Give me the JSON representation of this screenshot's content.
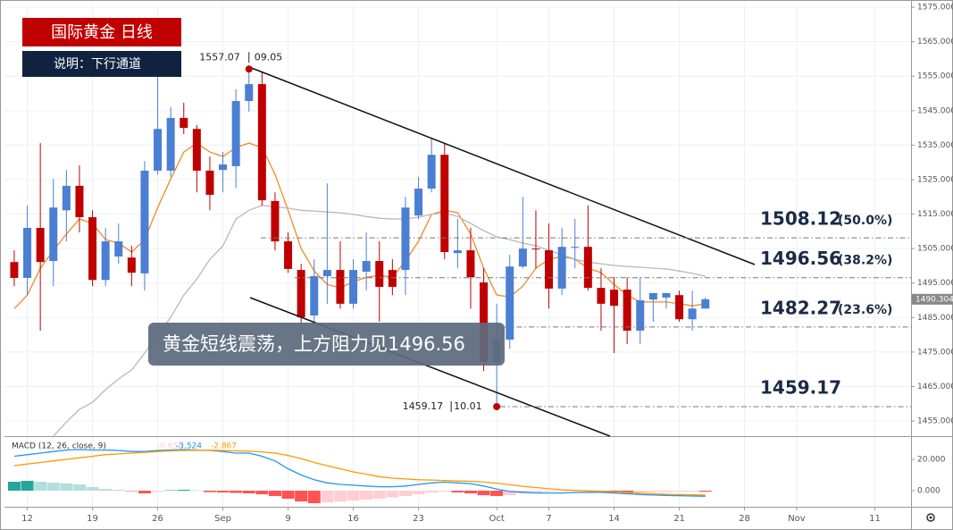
{
  "chart_data": [
    {
      "type": "candlestick",
      "title": "国际黄金 日线",
      "subtitle": "说明：下行通道",
      "annotation": "黄金短线震荡，上方阻力见1496.56",
      "high_point": {
        "value": 1557.07,
        "date": "09.05"
      },
      "low_point": {
        "value": 1459.17,
        "date": "10.01"
      },
      "levels": [
        {
          "value": 1508.12,
          "pct": "(50.0%)"
        },
        {
          "value": 1496.56,
          "pct": "(38.2%)"
        },
        {
          "value": 1482.27,
          "pct": "(23.6%)"
        },
        {
          "value": 1459.17
        }
      ],
      "up_color": "#4a7fd4",
      "down_color": "#c00000",
      "xlim": [
        -0.75,
        68.77
      ],
      "xticks": [
        {
          "value": 1,
          "label": "12"
        },
        {
          "value": 6,
          "label": "19"
        },
        {
          "value": 11,
          "label": "26"
        },
        {
          "value": 16,
          "label": "Sep"
        },
        {
          "value": 21,
          "label": "9"
        },
        {
          "value": 26,
          "label": "16"
        },
        {
          "value": 31,
          "label": "23"
        },
        {
          "value": 37,
          "label": "Oct"
        },
        {
          "value": 41,
          "label": "7"
        },
        {
          "value": 46,
          "label": "14"
        },
        {
          "value": 51,
          "label": "21"
        },
        {
          "value": 56,
          "label": "28"
        },
        {
          "value": 60,
          "label": "Nov"
        },
        {
          "value": 66,
          "label": "11"
        }
      ],
      "ylim": [
        1450.6,
        1575.8
      ],
      "yticks": [
        {
          "value": 1455,
          "label": "1455.000"
        },
        {
          "value": 1465,
          "label": "1465.000"
        },
        {
          "value": 1475,
          "label": "1475.000"
        },
        {
          "value": 1485,
          "label": "1485.000"
        },
        {
          "value": 1495,
          "label": "1495.000"
        },
        {
          "value": 1505,
          "label": "1505.000"
        },
        {
          "value": 1515,
          "label": "1515.000"
        },
        {
          "value": 1525,
          "label": "1525.000"
        },
        {
          "value": 1535,
          "label": "1535.000"
        },
        {
          "value": 1545,
          "label": "1545.000"
        },
        {
          "value": 1555,
          "label": "1555.000"
        },
        {
          "value": 1565,
          "label": "1565.000"
        },
        {
          "value": 1575,
          "label": "1575.000"
        }
      ],
      "grid": true,
      "open": [
        1501.1,
        1496.5,
        1511.0,
        1501.4,
        1516.1,
        1523.2,
        1514.1,
        1495.9,
        1502.7,
        1502.4,
        1497.8,
        1527.6,
        1527.6,
        1542.9,
        1539.7,
        1527.6,
        1527.8,
        1528.9,
        1547.8,
        1552.7,
        1518.8,
        1507.1,
        1498.8,
        1485.6,
        1497.0,
        1498.8,
        1489.0,
        1498.3,
        1501.4,
        1498.8,
        1498.8,
        1514.6,
        1522.4,
        1532.2,
        1503.7,
        1504.5,
        1495.2,
        1472.1,
        1478.6,
        1499.8,
        1505.0,
        1504.5,
        1493.4,
        1505.3,
        1505.5,
        1493.6,
        1493.1,
        1493.1,
        1481.2,
        1490.2,
        1490.8,
        1491.5,
        1484.5,
        1487.6
      ],
      "high": [
        1504.5,
        1517.5,
        1535.6,
        1525.2,
        1527.8,
        1529.1,
        1516.1,
        1511.0,
        1512.3,
        1505.8,
        1530.4,
        1555.5,
        1546.0,
        1547.3,
        1540.8,
        1531.7,
        1533.0,
        1551.2,
        1557.07,
        1556.3,
        1521.3,
        1509.7,
        1500.6,
        1501.9,
        1523.9,
        1507.1,
        1501.9,
        1509.7,
        1507.1,
        1501.9,
        1520.0,
        1525.8,
        1536.9,
        1535.6,
        1513.6,
        1511.0,
        1499.3,
        1489.0,
        1503.2,
        1520.0,
        1516.1,
        1512.3,
        1511.0,
        1513.6,
        1517.5,
        1499.3,
        1496.7,
        1496.7,
        1496.7,
        1492.1,
        1492.1,
        1492.8,
        1492.8,
        1490.8
      ],
      "low": [
        1494.1,
        1491.5,
        1481.2,
        1494.1,
        1507.1,
        1509.7,
        1494.1,
        1494.1,
        1500.6,
        1494.1,
        1492.8,
        1526.5,
        1525.8,
        1538.2,
        1521.3,
        1516.1,
        1521.3,
        1522.6,
        1544.7,
        1517.5,
        1504.5,
        1498.0,
        1482.5,
        1483.8,
        1489.0,
        1487.6,
        1487.6,
        1492.8,
        1483.8,
        1491.5,
        1491.5,
        1513.6,
        1521.3,
        1501.9,
        1499.3,
        1487.6,
        1469.5,
        1459.17,
        1476.0,
        1499.3,
        1499.3,
        1487.6,
        1491.5,
        1499.3,
        1492.8,
        1481.2,
        1474.7,
        1477.3,
        1477.3,
        1483.8,
        1487.6,
        1483.8,
        1481.2,
        1487.6
      ],
      "close": [
        1496.5,
        1511.0,
        1501.1,
        1516.9,
        1523.2,
        1514.1,
        1495.9,
        1507.1,
        1507.1,
        1498.0,
        1527.6,
        1539.7,
        1542.9,
        1540.0,
        1527.6,
        1520.6,
        1529.4,
        1547.8,
        1552.7,
        1519.0,
        1507.1,
        1499.1,
        1485.1,
        1497.0,
        1498.8,
        1489.0,
        1498.8,
        1501.4,
        1493.9,
        1493.9,
        1516.9,
        1522.4,
        1532.2,
        1504.0,
        1504.5,
        1496.7,
        1472.1,
        1478.6,
        1499.8,
        1505.0,
        1504.8,
        1493.4,
        1505.5,
        1505.5,
        1493.6,
        1489.0,
        1488.4,
        1481.2,
        1490.0,
        1492.1,
        1492.1,
        1484.5,
        1487.6,
        1490.304
      ],
      "lines": [
        {
          "color": "#f08a24",
          "values": [
            1487.6,
            1491.5,
            1499.3,
            1504.5,
            1509.2,
            1513.6,
            1512.3,
            1507.6,
            1506.6,
            1504.0,
            1507.6,
            1516.9,
            1525.2,
            1533.0,
            1535.6,
            1533.0,
            1531.7,
            1534.3,
            1535.6,
            1534.3,
            1526.5,
            1516.1,
            1505.0,
            1498.5,
            1494.6,
            1493.6,
            1495.4,
            1496.7,
            1497.2,
            1496.7,
            1501.4,
            1507.1,
            1514.9,
            1516.1,
            1515.4,
            1509.2,
            1499.3,
            1491.5,
            1491.0,
            1494.1,
            1499.3,
            1501.9,
            1502.7,
            1501.9,
            1499.3,
            1498.0,
            1494.6,
            1491.5,
            1489.5,
            1489.5,
            1489.5,
            1489.0,
            1488.4,
            1489.0
          ]
        },
        {
          "color": "#b8b8b8",
          "values": [
            null,
            null,
            null,
            1450.6,
            1454.7,
            1458.4,
            1460.4,
            1464.1,
            1467.2,
            1469.8,
            1474.7,
            1479.9,
            1485.1,
            1491.5,
            1496.2,
            1501.9,
            1505.8,
            1513.6,
            1516.1,
            1517.5,
            1517.2,
            1516.7,
            1516.1,
            1515.9,
            1515.6,
            1515.4,
            1514.9,
            1514.3,
            1513.8,
            1513.6,
            1513.6,
            1514.1,
            1514.9,
            1515.4,
            1514.3,
            1512.3,
            1510.2,
            1508.4,
            1507.6,
            1506.6,
            1505.8,
            1504.5,
            1503.2,
            1501.9,
            1501.1,
            1500.6,
            1500.1,
            1499.8,
            1499.6,
            1499.3,
            1499.1,
            1498.5,
            1497.8,
            1497.0
          ]
        }
      ]
    },
    {
      "type": "macd",
      "title": "MACD (12, 26, close, 9)",
      "ylim": [
        -9.7,
        33.7
      ],
      "yticks": [
        {
          "value": 20,
          "label": "20.000"
        },
        {
          "value": 0,
          "label": "0.000"
        }
      ],
      "hist_colors": [
        "#26a69a",
        "#b2dfdb",
        "#ff5252",
        "#ffcdd2"
      ],
      "histogram": [
        5.7,
        6.3,
        5.7,
        5.1,
        4.6,
        4.0,
        2.3,
        1.1,
        0.6,
        -0.3,
        -1.7,
        -0.6,
        0.3,
        0.6,
        0.3,
        -0.9,
        -1.1,
        -1.4,
        -1.7,
        -2.3,
        -3.4,
        -5.1,
        -6.9,
        -8.0,
        -7.4,
        -6.9,
        -6.3,
        -5.7,
        -5.1,
        -4.3,
        -3.4,
        -2.3,
        -1.1,
        -0.6,
        -1.1,
        -1.7,
        -2.9,
        -3.4,
        -2.9,
        -1.7,
        -1.1,
        -0.6,
        -0.3,
        -0.3,
        -0.3,
        -0.6,
        -0.9,
        -1.1,
        -1.1,
        -0.9,
        -0.9,
        -0.6,
        -0.6,
        -0.656
      ],
      "macd": {
        "color": "#2196f3",
        "values": [
          22,
          23,
          24,
          25,
          26,
          26.3,
          26,
          26,
          25.7,
          25,
          25,
          25.7,
          26,
          26.3,
          26,
          25.7,
          25,
          24,
          24,
          22,
          19,
          14,
          10,
          7,
          5,
          4,
          3.5,
          3,
          2.5,
          2.5,
          3,
          4,
          5,
          5.5,
          5,
          4.5,
          3,
          1,
          -0.5,
          -1,
          -1.5,
          -1.5,
          -1.5,
          -1.2,
          -1,
          -1,
          -1.5,
          -2,
          -2.5,
          -2.8,
          -3,
          -3.2,
          -3.4,
          -3.524
        ]
      },
      "signal": {
        "color": "#ff9800",
        "values": [
          16,
          17,
          18,
          19,
          20,
          21,
          22,
          23,
          23.5,
          24,
          24.5,
          25,
          25.5,
          25.7,
          25.8,
          25.8,
          25.7,
          25.5,
          25.2,
          24.8,
          24,
          22.5,
          20.5,
          18,
          16,
          14,
          12,
          10.5,
          9,
          8,
          7.5,
          7,
          6.8,
          6.5,
          6.2,
          6,
          5.5,
          4.8,
          3.8,
          2.8,
          2,
          1.2,
          0.6,
          0.2,
          -0.1,
          -0.4,
          -0.8,
          -1.2,
          -1.6,
          -2,
          -2.3,
          -2.5,
          -2.7,
          -2.867
        ]
      }
    }
  ]
}
